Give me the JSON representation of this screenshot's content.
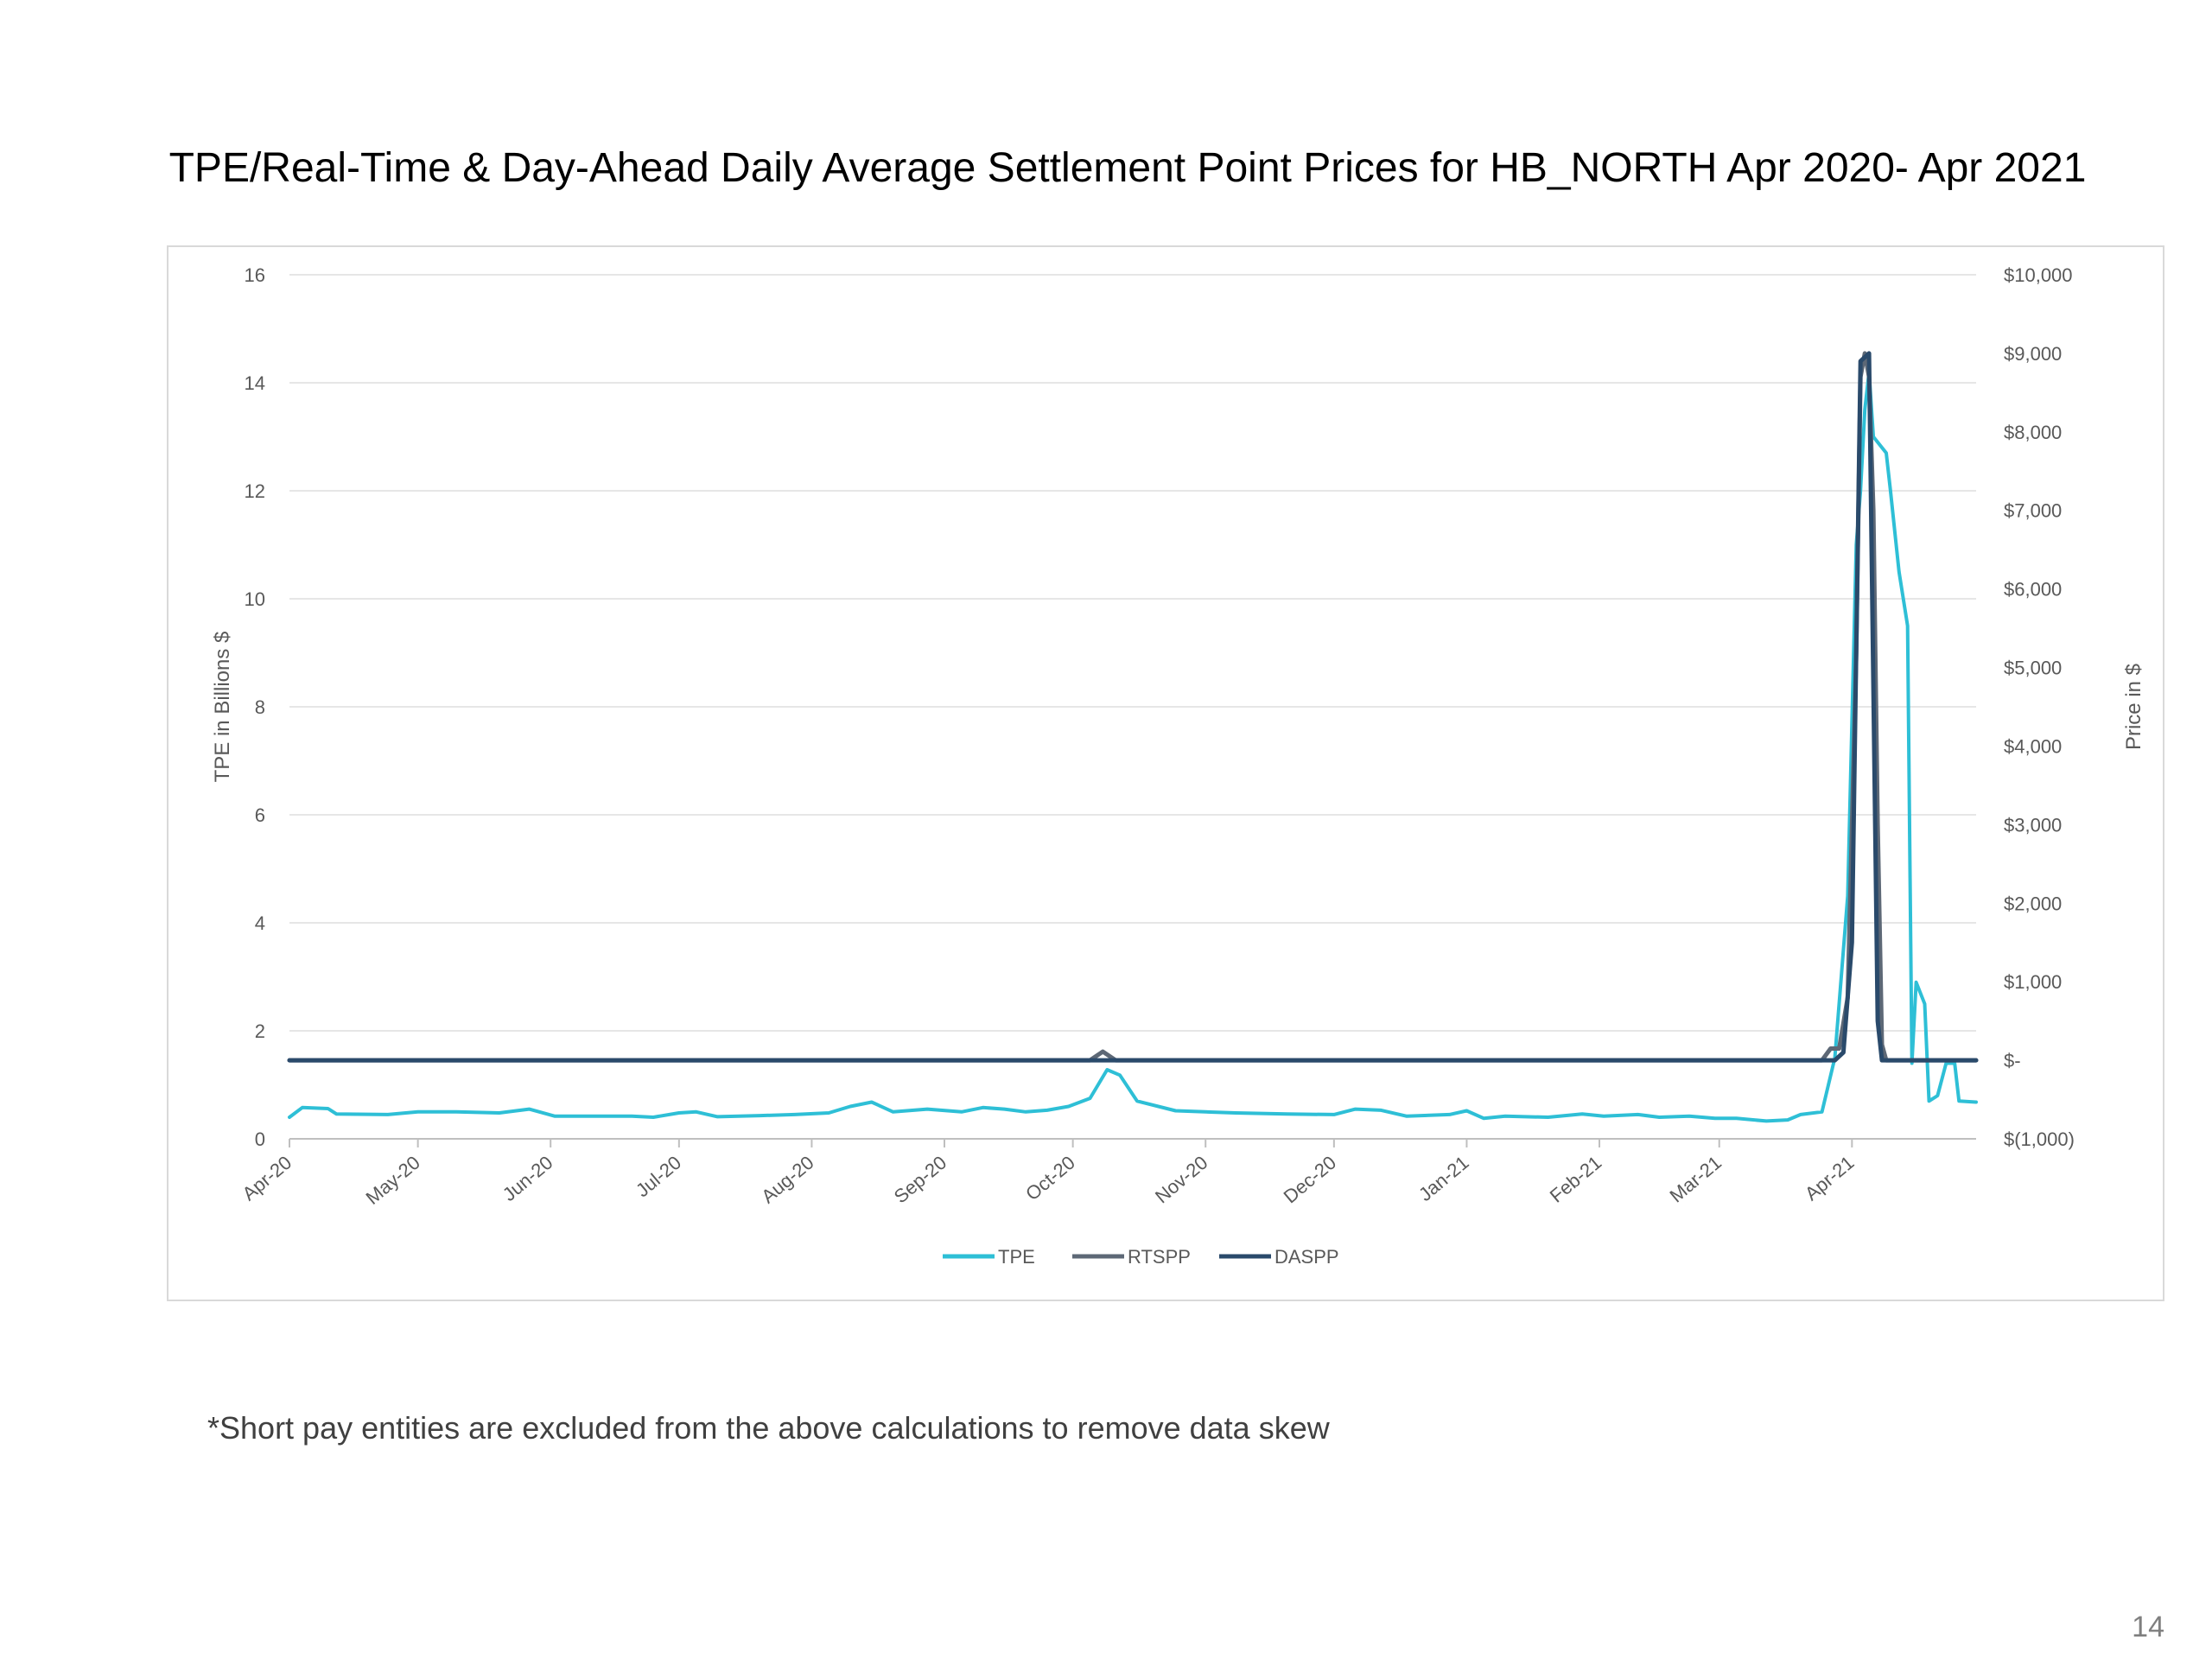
{
  "title": "TPE/Real-Time & Day-Ahead Daily Average Settlement Point Prices for HB_NORTH Apr 2020- Apr 2021",
  "footnote": "*Short pay entities are excluded from the above calculations to remove data skew",
  "page_number": "14",
  "colors": {
    "TPE": "#2ebfd6",
    "RTSPP": "#5d6876",
    "DASPP": "#2a4a6b",
    "grid": "#e6e6e6"
  },
  "chart_data": {
    "type": "line",
    "title": "TPE/Real-Time & Day-Ahead Daily Average Settlement Point Prices for HB_NORTH Apr 2020- Apr 2021",
    "x_tick_labels": [
      "Apr-20",
      "May-20",
      "Jun-20",
      "Jul-20",
      "Aug-20",
      "Sep-20",
      "Oct-20",
      "Nov-20",
      "Dec-20",
      "Jan-21",
      "Feb-21",
      "Mar-21",
      "Apr-21"
    ],
    "x_range": [
      "2020-04-01",
      "2021-04-30"
    ],
    "y_left": {
      "label": "TPE in Billions $",
      "range": [
        0,
        16
      ],
      "tick_labels": [
        "0",
        "2",
        "4",
        "6",
        "8",
        "10",
        "12",
        "14",
        "16"
      ]
    },
    "y_right": {
      "label": "Price in $",
      "range": [
        -1000,
        10000
      ],
      "tick_labels": [
        "$(1,000)",
        "$-",
        "$1,000",
        "$2,000",
        "$3,000",
        "$4,000",
        "$5,000",
        "$6,000",
        "$7,000",
        "$8,000",
        "$9,000",
        "$10,000"
      ]
    },
    "grid": true,
    "legend_position": "bottom",
    "series": [
      {
        "name": "TPE",
        "axis": "left",
        "points": [
          [
            "2020-04-01",
            0.4
          ],
          [
            "2020-04-04",
            0.58
          ],
          [
            "2020-04-10",
            0.56
          ],
          [
            "2020-04-12",
            0.46
          ],
          [
            "2020-04-24",
            0.45
          ],
          [
            "2020-05-01",
            0.5
          ],
          [
            "2020-05-10",
            0.5
          ],
          [
            "2020-05-20",
            0.48
          ],
          [
            "2020-05-27",
            0.55
          ],
          [
            "2020-06-02",
            0.42
          ],
          [
            "2020-06-20",
            0.42
          ],
          [
            "2020-06-25",
            0.4
          ],
          [
            "2020-07-01",
            0.48
          ],
          [
            "2020-07-05",
            0.5
          ],
          [
            "2020-07-10",
            0.41
          ],
          [
            "2020-07-20",
            0.43
          ],
          [
            "2020-07-28",
            0.45
          ],
          [
            "2020-08-05",
            0.48
          ],
          [
            "2020-08-10",
            0.6
          ],
          [
            "2020-08-15",
            0.68
          ],
          [
            "2020-08-20",
            0.5
          ],
          [
            "2020-08-28",
            0.55
          ],
          [
            "2020-09-05",
            0.5
          ],
          [
            "2020-09-10",
            0.58
          ],
          [
            "2020-09-15",
            0.55
          ],
          [
            "2020-09-20",
            0.5
          ],
          [
            "2020-09-25",
            0.53
          ],
          [
            "2020-09-30",
            0.6
          ],
          [
            "2020-10-05",
            0.75
          ],
          [
            "2020-10-09",
            1.28
          ],
          [
            "2020-10-12",
            1.18
          ],
          [
            "2020-10-16",
            0.7
          ],
          [
            "2020-10-25",
            0.52
          ],
          [
            "2020-11-01",
            0.5
          ],
          [
            "2020-11-08",
            0.48
          ],
          [
            "2020-11-20",
            0.46
          ],
          [
            "2020-12-01",
            0.45
          ],
          [
            "2020-12-06",
            0.55
          ],
          [
            "2020-12-12",
            0.53
          ],
          [
            "2020-12-18",
            0.42
          ],
          [
            "2020-12-28",
            0.45
          ],
          [
            "2021-01-01",
            0.52
          ],
          [
            "2021-01-05",
            0.38
          ],
          [
            "2021-01-10",
            0.42
          ],
          [
            "2021-01-20",
            0.4
          ],
          [
            "2021-01-28",
            0.46
          ],
          [
            "2021-02-02",
            0.42
          ],
          [
            "2021-02-10",
            0.45
          ],
          [
            "2021-02-15",
            0.4
          ],
          [
            "2021-02-22",
            0.42
          ],
          [
            "2021-02-28",
            0.38
          ],
          [
            "2021-03-05",
            0.38
          ],
          [
            "2021-03-12",
            0.33
          ],
          [
            "2021-03-17",
            0.35
          ],
          [
            "2021-03-20",
            0.45
          ],
          [
            "2021-03-25",
            0.5
          ],
          [
            "2021-03-28",
            1.5
          ],
          [
            "2021-03-31",
            4.5
          ],
          [
            "2021-04-02",
            11.0
          ],
          [
            "2021-04-03",
            12.0
          ],
          [
            "2021-04-04",
            13.5
          ],
          [
            "2021-04-05",
            14.2
          ],
          [
            "2021-04-06",
            13.0
          ],
          [
            "2021-04-09",
            12.7
          ],
          [
            "2021-04-10",
            12.0
          ],
          [
            "2021-04-12",
            10.5
          ],
          [
            "2021-04-14",
            9.5
          ],
          [
            "2021-04-15",
            1.4
          ],
          [
            "2021-04-16",
            2.9
          ],
          [
            "2021-04-18",
            2.5
          ],
          [
            "2021-04-19",
            0.7
          ],
          [
            "2021-04-21",
            0.8
          ],
          [
            "2021-04-23",
            1.4
          ],
          [
            "2021-04-25",
            1.4
          ],
          [
            "2021-04-26",
            0.7
          ],
          [
            "2021-04-30",
            0.68
          ]
        ]
      },
      {
        "name": "RTSPP",
        "axis": "right",
        "points": [
          [
            "2020-04-01",
            0
          ],
          [
            "2020-10-05",
            0
          ],
          [
            "2020-10-08",
            110
          ],
          [
            "2020-10-11",
            0
          ],
          [
            "2021-03-25",
            0
          ],
          [
            "2021-03-27",
            150
          ],
          [
            "2021-03-29",
            150
          ],
          [
            "2021-03-31",
            800
          ],
          [
            "2021-04-02",
            5200
          ],
          [
            "2021-04-03",
            8700
          ],
          [
            "2021-04-04",
            9000
          ],
          [
            "2021-04-05",
            8700
          ],
          [
            "2021-04-06",
            7000
          ],
          [
            "2021-04-07",
            3000
          ],
          [
            "2021-04-08",
            200
          ],
          [
            "2021-04-09",
            0
          ],
          [
            "2021-04-30",
            0
          ]
        ]
      },
      {
        "name": "DASPP",
        "axis": "right",
        "points": [
          [
            "2020-04-01",
            0
          ],
          [
            "2021-03-28",
            0
          ],
          [
            "2021-03-30",
            100
          ],
          [
            "2021-04-01",
            1500
          ],
          [
            "2021-04-03",
            8900
          ],
          [
            "2021-04-05",
            9000
          ],
          [
            "2021-04-07",
            500
          ],
          [
            "2021-04-08",
            0
          ],
          [
            "2021-04-30",
            0
          ]
        ]
      }
    ]
  }
}
